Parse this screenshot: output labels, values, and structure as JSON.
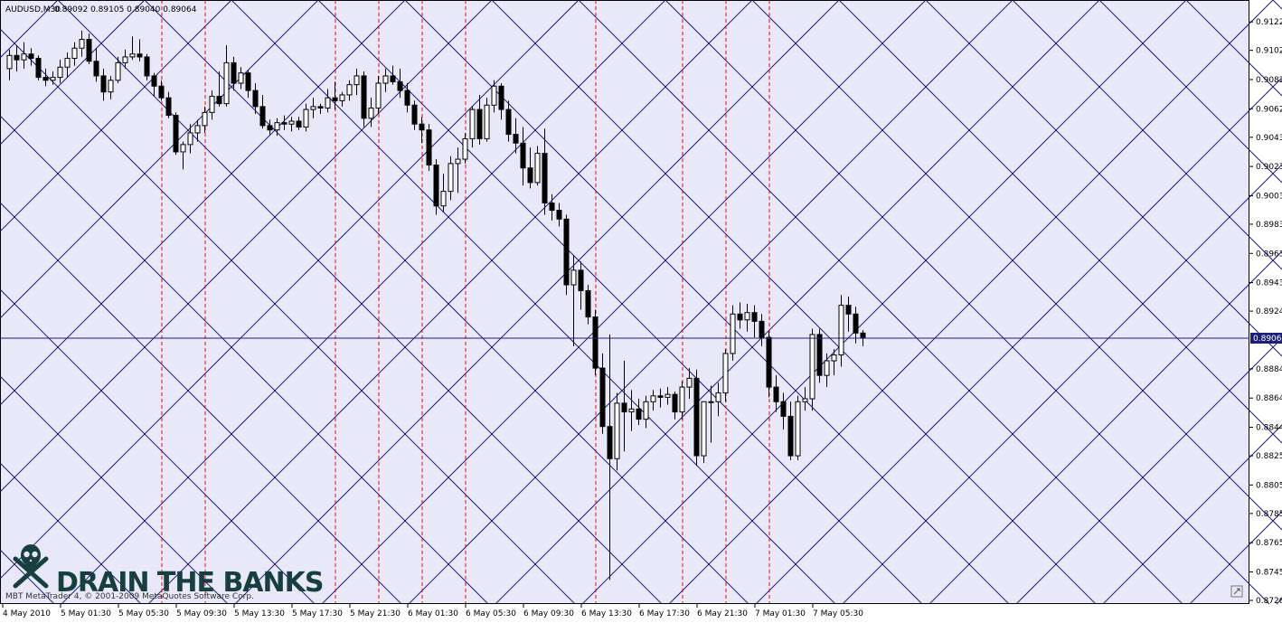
{
  "header": {
    "symbol": "AUDUSD,M30",
    "ohlc": "0.89092 0.89105 0.89040 0.89064"
  },
  "footer": {
    "copyright": "MBT MetaTrader 4, © 2001-2009 MetaQuotes Software Corp."
  },
  "watermark": {
    "text": "DRAIN THE BANKS",
    "icon": "skull-crossbones-icon"
  },
  "current_price_label": "0.89064",
  "colors": {
    "background": "#e8e8f8",
    "grid": "#1e1e78",
    "separator": "#ff0000",
    "bull_body": "#ffffff",
    "bear_body": "#000000",
    "logo": "#173f3f"
  },
  "chart_data": {
    "type": "candlestick",
    "symbol": "AUDUSD",
    "timeframe": "M30",
    "ylim": [
      0.8726,
      0.9132
    ],
    "current_price": 0.89064,
    "y_ticks": [
      "0.91220",
      "0.91025",
      "0.90825",
      "0.90625",
      "0.90430",
      "0.90230",
      "0.90030",
      "0.89835",
      "0.89635",
      "0.89435",
      "0.89240",
      "0.89064",
      "0.88845",
      "0.88645",
      "0.88445",
      "0.88250",
      "0.88050",
      "0.87855",
      "0.87655",
      "0.87455",
      "0.87260"
    ],
    "x_ticks": [
      "4 May 2010",
      "5 May 01:30",
      "5 May 05:30",
      "5 May 09:30",
      "5 May 13:30",
      "5 May 17:30",
      "5 May 21:30",
      "6 May 01:30",
      "6 May 05:30",
      "6 May 09:30",
      "6 May 13:30",
      "6 May 17:30",
      "6 May 21:30",
      "7 May 01:30",
      "7 May 05:30"
    ],
    "candles": [
      [
        0.909,
        0.9103,
        0.9082,
        0.9099
      ],
      [
        0.9099,
        0.9106,
        0.9088,
        0.9096
      ],
      [
        0.9096,
        0.9108,
        0.909,
        0.91
      ],
      [
        0.91,
        0.9104,
        0.9092,
        0.9097
      ],
      [
        0.9097,
        0.9099,
        0.9082,
        0.9084
      ],
      [
        0.9084,
        0.909,
        0.9078,
        0.9082
      ],
      [
        0.9082,
        0.9088,
        0.9079,
        0.9084
      ],
      [
        0.9084,
        0.9096,
        0.908,
        0.9091
      ],
      [
        0.9091,
        0.9101,
        0.9084,
        0.9097
      ],
      [
        0.9097,
        0.9108,
        0.9092,
        0.9104
      ],
      [
        0.9104,
        0.9116,
        0.9098,
        0.911
      ],
      [
        0.911,
        0.9114,
        0.9093,
        0.9095
      ],
      [
        0.9095,
        0.9104,
        0.9081,
        0.9085
      ],
      [
        0.9085,
        0.909,
        0.9068,
        0.9074
      ],
      [
        0.9074,
        0.9085,
        0.9069,
        0.9082
      ],
      [
        0.9082,
        0.9098,
        0.908,
        0.9094
      ],
      [
        0.9094,
        0.9103,
        0.909,
        0.9098
      ],
      [
        0.9098,
        0.9112,
        0.9096,
        0.91
      ],
      [
        0.91,
        0.911,
        0.9095,
        0.9098
      ],
      [
        0.9098,
        0.91,
        0.9082,
        0.9085
      ],
      [
        0.9085,
        0.9087,
        0.9071,
        0.9078
      ],
      [
        0.9078,
        0.9082,
        0.9068,
        0.907
      ],
      [
        0.907,
        0.9074,
        0.9056,
        0.9058
      ],
      [
        0.9058,
        0.906,
        0.9031,
        0.9033
      ],
      [
        0.9033,
        0.904,
        0.9021,
        0.9038
      ],
      [
        0.9038,
        0.9052,
        0.9032,
        0.9046
      ],
      [
        0.9046,
        0.9055,
        0.904,
        0.9051
      ],
      [
        0.9051,
        0.9064,
        0.9046,
        0.906
      ],
      [
        0.906,
        0.9075,
        0.9055,
        0.9071
      ],
      [
        0.9071,
        0.9088,
        0.9064,
        0.9066
      ],
      [
        0.9066,
        0.9106,
        0.9064,
        0.9094
      ],
      [
        0.9094,
        0.9098,
        0.9075,
        0.908
      ],
      [
        0.908,
        0.9091,
        0.9076,
        0.9087
      ],
      [
        0.9087,
        0.9089,
        0.907,
        0.9075
      ],
      [
        0.9075,
        0.908,
        0.9059,
        0.9064
      ],
      [
        0.9064,
        0.9072,
        0.9049,
        0.9051
      ],
      [
        0.9051,
        0.9055,
        0.9045,
        0.9048
      ],
      [
        0.9048,
        0.9056,
        0.9044,
        0.9053
      ],
      [
        0.9053,
        0.9058,
        0.9048,
        0.9052
      ],
      [
        0.9052,
        0.9057,
        0.9047,
        0.9054
      ],
      [
        0.9054,
        0.9057,
        0.9048,
        0.905
      ],
      [
        0.905,
        0.9066,
        0.9047,
        0.9062
      ],
      [
        0.9062,
        0.907,
        0.9056,
        0.9064
      ],
      [
        0.9064,
        0.9066,
        0.9059,
        0.9063
      ],
      [
        0.9063,
        0.9076,
        0.906,
        0.907
      ],
      [
        0.907,
        0.9081,
        0.9062,
        0.9068
      ],
      [
        0.9068,
        0.9074,
        0.9064,
        0.9072
      ],
      [
        0.9072,
        0.9082,
        0.9068,
        0.9079
      ],
      [
        0.9079,
        0.909,
        0.9072,
        0.9085
      ],
      [
        0.9085,
        0.9088,
        0.905,
        0.9056
      ],
      [
        0.9056,
        0.907,
        0.905,
        0.9063
      ],
      [
        0.9063,
        0.9085,
        0.9059,
        0.908
      ],
      [
        0.908,
        0.909,
        0.9074,
        0.9085
      ],
      [
        0.9085,
        0.9092,
        0.9079,
        0.9081
      ],
      [
        0.9081,
        0.909,
        0.907,
        0.9075
      ],
      [
        0.9075,
        0.908,
        0.906,
        0.9065
      ],
      [
        0.9065,
        0.9068,
        0.9048,
        0.9052
      ],
      [
        0.9052,
        0.9057,
        0.9039,
        0.9048
      ],
      [
        0.9048,
        0.9052,
        0.902,
        0.9024
      ],
      [
        0.9024,
        0.9028,
        0.899,
        0.8996
      ],
      [
        0.8996,
        0.9018,
        0.8992,
        0.9006
      ],
      [
        0.9006,
        0.903,
        0.9,
        0.9025
      ],
      [
        0.9025,
        0.9036,
        0.9005,
        0.9028
      ],
      [
        0.9028,
        0.9046,
        0.9025,
        0.9042
      ],
      [
        0.9042,
        0.9064,
        0.9036,
        0.9062
      ],
      [
        0.9062,
        0.9072,
        0.9038,
        0.9042
      ],
      [
        0.9042,
        0.907,
        0.904,
        0.9065
      ],
      [
        0.9065,
        0.9082,
        0.906,
        0.9078
      ],
      [
        0.9078,
        0.908,
        0.9055,
        0.9062
      ],
      [
        0.9062,
        0.9068,
        0.904,
        0.9045
      ],
      [
        0.9045,
        0.9056,
        0.9032,
        0.9039
      ],
      [
        0.9039,
        0.905,
        0.901,
        0.9022
      ],
      [
        0.9022,
        0.9036,
        0.9008,
        0.9012
      ],
      [
        0.9012,
        0.9037,
        0.901,
        0.9032
      ],
      [
        0.9032,
        0.9049,
        0.899,
        0.8998
      ],
      [
        0.8998,
        0.9004,
        0.8986,
        0.8993
      ],
      [
        0.8993,
        0.8998,
        0.8982,
        0.8987
      ],
      [
        0.8987,
        0.899,
        0.8935,
        0.8942
      ],
      [
        0.8942,
        0.8962,
        0.89,
        0.8952
      ],
      [
        0.8952,
        0.8958,
        0.8925,
        0.8938
      ],
      [
        0.8938,
        0.8942,
        0.8915,
        0.892
      ],
      [
        0.892,
        0.8925,
        0.888,
        0.8885
      ],
      [
        0.8885,
        0.8895,
        0.884,
        0.8845
      ],
      [
        0.8845,
        0.8908,
        0.874,
        0.8823
      ],
      [
        0.8823,
        0.8868,
        0.8815,
        0.8861
      ],
      [
        0.8861,
        0.889,
        0.8828,
        0.8855
      ],
      [
        0.8855,
        0.887,
        0.8842,
        0.8857
      ],
      [
        0.8857,
        0.8864,
        0.8846,
        0.885
      ],
      [
        0.885,
        0.8866,
        0.8844,
        0.8862
      ],
      [
        0.8862,
        0.887,
        0.8856,
        0.8866
      ],
      [
        0.8866,
        0.8871,
        0.8858,
        0.8865
      ],
      [
        0.8865,
        0.8872,
        0.886,
        0.8867
      ],
      [
        0.8867,
        0.8869,
        0.885,
        0.8855
      ],
      [
        0.8855,
        0.8876,
        0.885,
        0.8872
      ],
      [
        0.8872,
        0.8885,
        0.8864,
        0.8878
      ],
      [
        0.8878,
        0.8884,
        0.8818,
        0.8825
      ],
      [
        0.8825,
        0.886,
        0.882,
        0.8862
      ],
      [
        0.8862,
        0.8873,
        0.8834,
        0.8862
      ],
      [
        0.8862,
        0.8875,
        0.8852,
        0.8868
      ],
      [
        0.8868,
        0.8898,
        0.8862,
        0.8895
      ],
      [
        0.8895,
        0.8928,
        0.889,
        0.8922
      ],
      [
        0.8922,
        0.893,
        0.8912,
        0.8918
      ],
      [
        0.8918,
        0.8929,
        0.891,
        0.8923
      ],
      [
        0.8923,
        0.8928,
        0.8906,
        0.8917
      ],
      [
        0.8917,
        0.8922,
        0.89,
        0.8906
      ],
      [
        0.8906,
        0.891,
        0.8865,
        0.8872
      ],
      [
        0.8872,
        0.888,
        0.8855,
        0.8862
      ],
      [
        0.8862,
        0.8868,
        0.8843,
        0.8852
      ],
      [
        0.8852,
        0.8862,
        0.8822,
        0.8825
      ],
      [
        0.8825,
        0.8866,
        0.8822,
        0.8862
      ],
      [
        0.8862,
        0.8872,
        0.8856,
        0.8864
      ],
      [
        0.8864,
        0.8912,
        0.8856,
        0.8908
      ],
      [
        0.8908,
        0.8912,
        0.8875,
        0.888
      ],
      [
        0.888,
        0.8895,
        0.8872,
        0.889
      ],
      [
        0.889,
        0.8898,
        0.888,
        0.8894
      ],
      [
        0.8894,
        0.8935,
        0.8886,
        0.8928
      ],
      [
        0.8928,
        0.8934,
        0.891,
        0.8922
      ],
      [
        0.8922,
        0.8927,
        0.8902,
        0.8909
      ],
      [
        0.8909,
        0.8911,
        0.89,
        0.8906
      ]
    ]
  }
}
